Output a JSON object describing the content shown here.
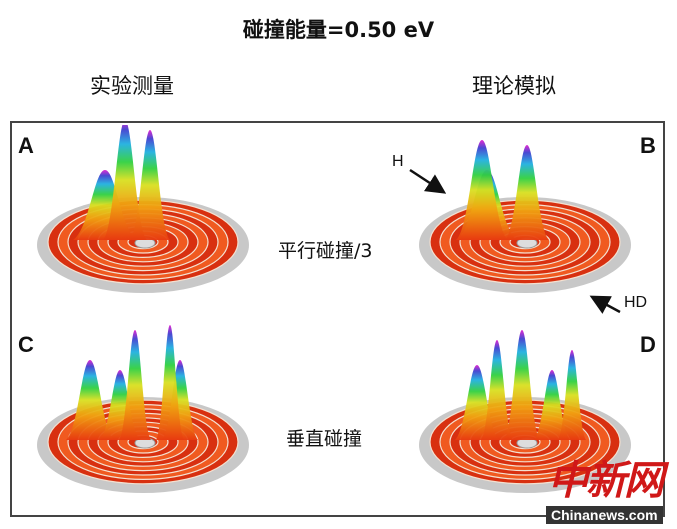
{
  "title": "碰撞能量=0.50 eV",
  "columns": {
    "left": "实验测量",
    "right": "理论模拟"
  },
  "panels": [
    {
      "label": "A"
    },
    {
      "label": "B"
    },
    {
      "label": "C"
    },
    {
      "label": "D"
    }
  ],
  "rows": {
    "top": "平行碰撞/3",
    "bottom": "垂直碰撞"
  },
  "annotations": {
    "h": "H",
    "hd": "HD"
  },
  "watermark": {
    "chinese": "中新网",
    "english": "Chinanews.com"
  },
  "colors": {
    "disk": "#c8c8c8",
    "rings": "#e8401a",
    "frame": "#444444"
  }
}
